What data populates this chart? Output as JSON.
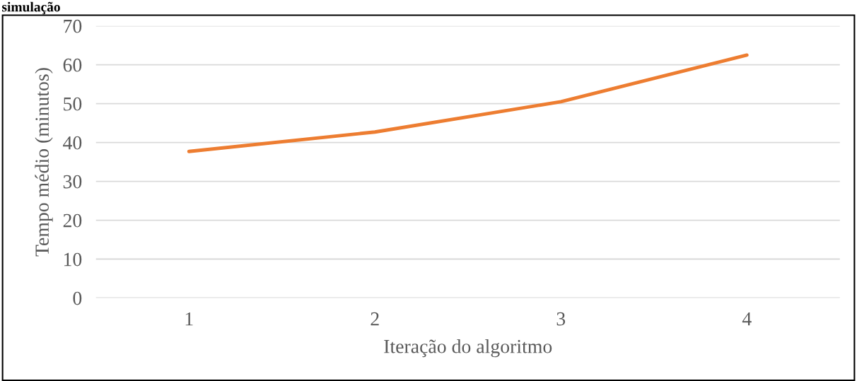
{
  "chart_data": {
    "type": "line",
    "categories": [
      "1",
      "2",
      "3",
      "4"
    ],
    "series": [
      {
        "color": "#ed7d31",
        "values": [
          37.7,
          42.7,
          50.5,
          62.5
        ]
      }
    ],
    "xlabel": "Iteração do algoritmo",
    "ylabel": "Tempo médio (minutos)",
    "ylim": [
      0,
      70
    ],
    "yticks": [
      0,
      10,
      20,
      30,
      40,
      50,
      60,
      70
    ],
    "grid": "y",
    "marker": "none",
    "line_style": "solid",
    "legend": false,
    "annotations": [
      "simulação"
    ]
  }
}
